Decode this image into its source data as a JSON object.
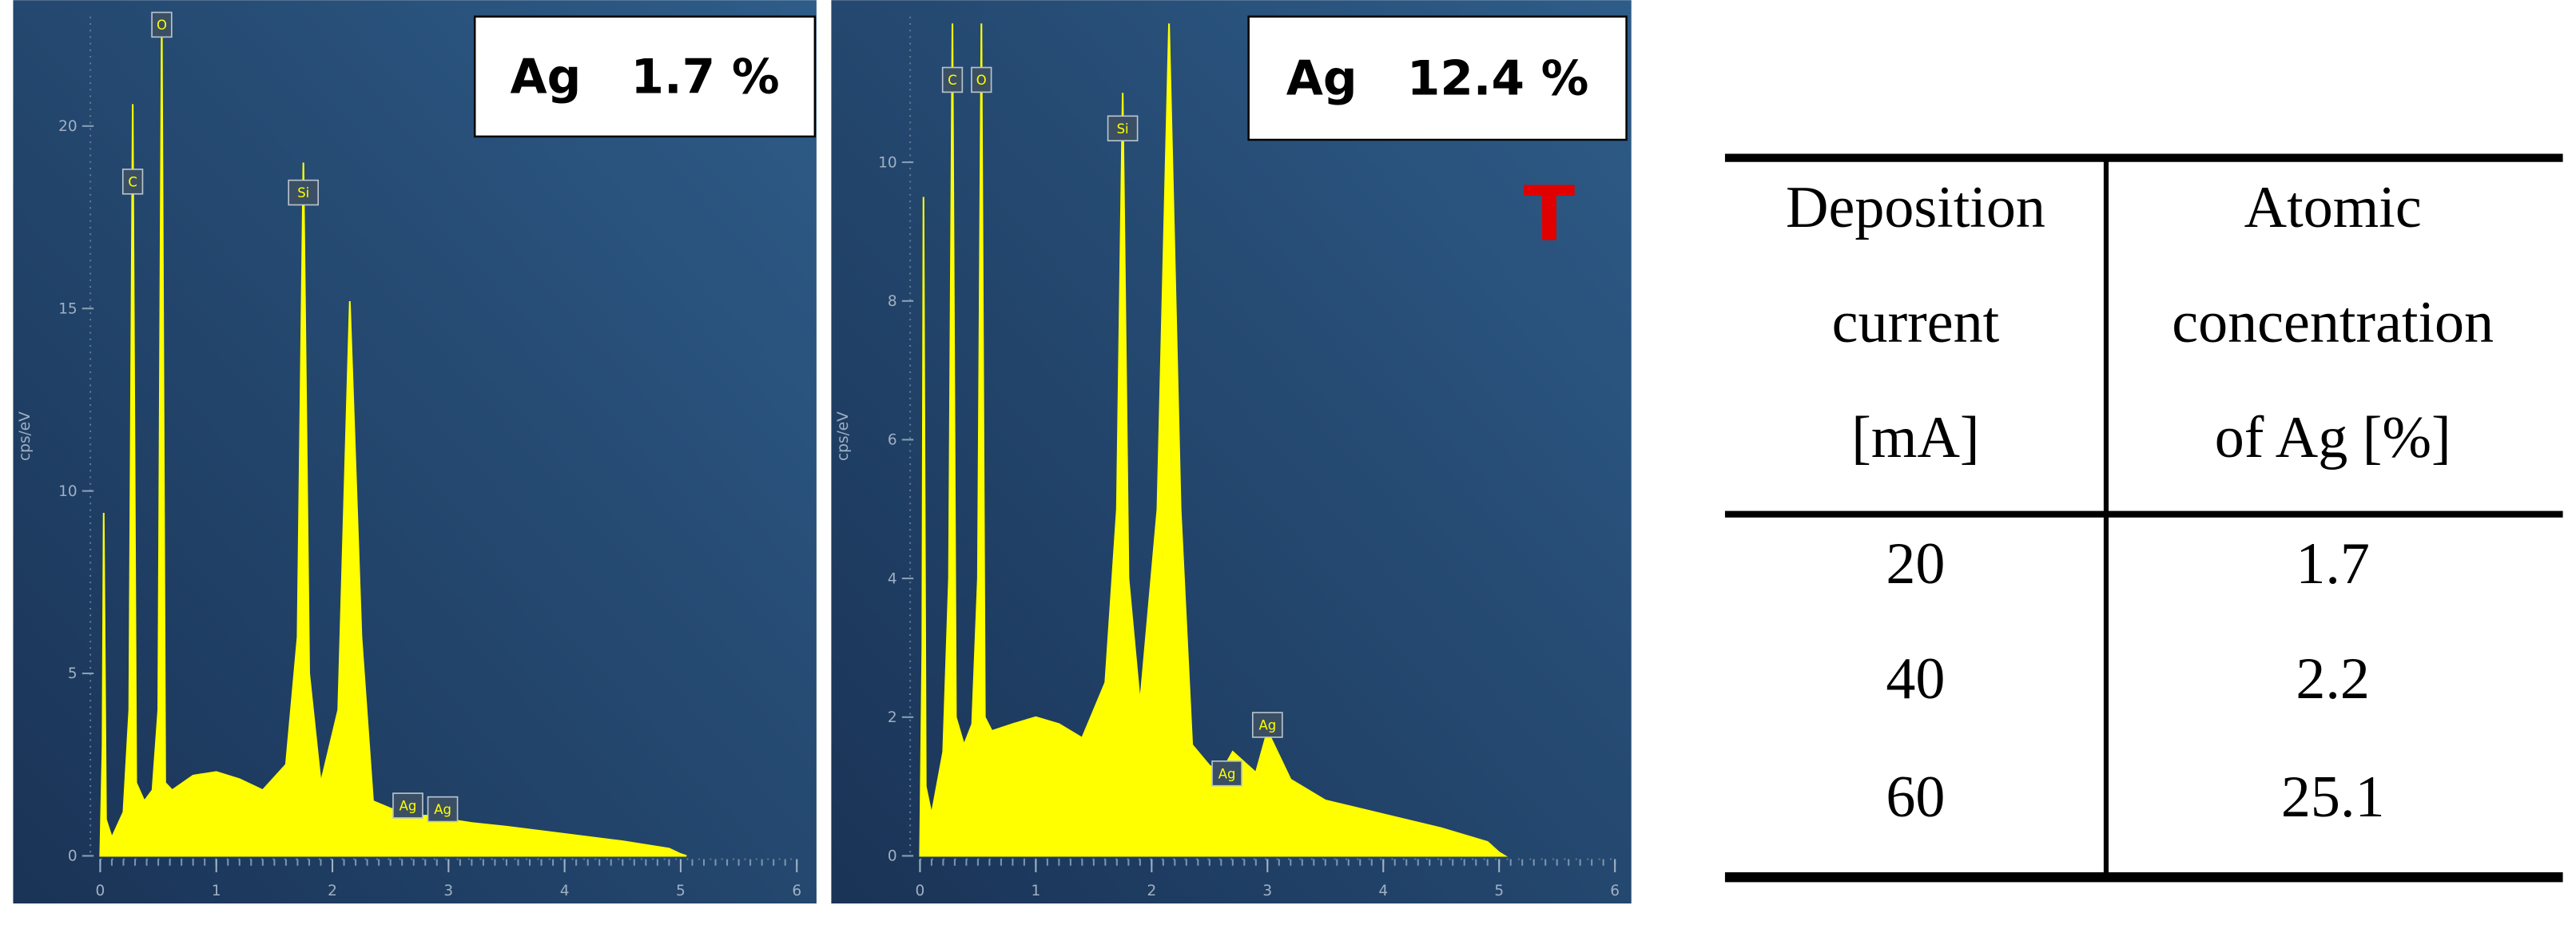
{
  "chart_data": [
    {
      "type": "area",
      "y_label": "cps/eV",
      "color": "#ffff00",
      "x": [
        0,
        0.02,
        0.03,
        0.05,
        0.1,
        0.2,
        0.25,
        0.28,
        0.31,
        0.38,
        0.45,
        0.5,
        0.53,
        0.56,
        0.62,
        0.8,
        1.0,
        1.2,
        1.4,
        1.6,
        1.7,
        1.75,
        1.8,
        1.9,
        2.05,
        2.15,
        2.25,
        2.35,
        2.5,
        2.6,
        2.7,
        2.9,
        3.0,
        3.2,
        3.5,
        4.0,
        4.5,
        4.9,
        5.0,
        5.05
      ],
      "values": [
        0,
        3,
        9.4,
        1,
        0.5,
        1.2,
        4,
        20.6,
        2,
        1.5,
        1.8,
        4,
        23,
        2,
        1.8,
        2.2,
        2.3,
        2.1,
        1.8,
        2.5,
        6,
        19,
        5,
        2,
        4,
        15.2,
        6,
        1.5,
        1.3,
        1.2,
        1.1,
        1.1,
        1,
        0.9,
        0.8,
        0.6,
        0.4,
        0.2,
        0.05,
        0
      ],
      "xlim": [
        0,
        6
      ],
      "xticks": [
        0,
        1,
        2,
        3,
        4,
        5,
        6
      ],
      "ylim": [
        0,
        23
      ],
      "yticks": [
        0,
        5,
        10,
        15,
        20
      ],
      "peaks": [
        {
          "label": "C",
          "x": 0.28,
          "y": 18.5
        },
        {
          "label": "O",
          "x": 0.53,
          "y": 22.8
        },
        {
          "label": "Si",
          "x": 1.75,
          "y": 18.2
        },
        {
          "label": "Ag",
          "x": 2.65,
          "y": 1.4
        },
        {
          "label": "Ag",
          "x": 2.95,
          "y": 1.3
        }
      ],
      "annotation": "Ag   1.7 %"
    },
    {
      "type": "area",
      "y_label": "cps/eV",
      "color": "#ffff00",
      "x": [
        0,
        0.02,
        0.03,
        0.05,
        0.1,
        0.2,
        0.25,
        0.28,
        0.31,
        0.38,
        0.45,
        0.5,
        0.53,
        0.56,
        0.62,
        0.8,
        1.0,
        1.2,
        1.4,
        1.6,
        1.7,
        1.75,
        1.8,
        1.9,
        2.05,
        2.15,
        2.25,
        2.35,
        2.5,
        2.6,
        2.7,
        2.9,
        3.0,
        3.2,
        3.5,
        4.0,
        4.5,
        4.9,
        5.0,
        5.05
      ],
      "values": [
        0,
        3,
        9.5,
        1,
        0.6,
        1.5,
        4,
        12,
        2,
        1.6,
        1.9,
        4,
        12,
        2,
        1.8,
        1.9,
        2.0,
        1.9,
        1.7,
        2.5,
        5,
        11,
        4,
        2.2,
        5,
        12,
        5,
        1.6,
        1.3,
        1.2,
        1.5,
        1.2,
        1.8,
        1.1,
        0.8,
        0.6,
        0.4,
        0.2,
        0.05,
        0
      ],
      "xlim": [
        0,
        6
      ],
      "xticks": [
        0,
        1,
        2,
        3,
        4,
        5,
        6
      ],
      "ylim": [
        0,
        12.1
      ],
      "yticks": [
        0,
        2,
        4,
        6,
        8,
        10
      ],
      "peaks": [
        {
          "label": "C",
          "x": 0.28,
          "y": 11.2
        },
        {
          "label": "O",
          "x": 0.53,
          "y": 11.2
        },
        {
          "label": "Si",
          "x": 1.75,
          "y": 10.5
        },
        {
          "label": "Ag",
          "x": 2.65,
          "y": 1.2
        },
        {
          "label": "Ag",
          "x": 3.0,
          "y": 1.9
        }
      ],
      "annotation": "Ag   12.4 %",
      "marker": "T"
    }
  ],
  "table": {
    "header": [
      [
        "Deposition",
        "current",
        "[mA]"
      ],
      [
        "Atomic",
        "concentration",
        "of Ag [%]"
      ]
    ],
    "rows": [
      [
        20,
        1.7
      ],
      [
        40,
        2.2
      ],
      [
        60,
        25.1
      ]
    ]
  }
}
